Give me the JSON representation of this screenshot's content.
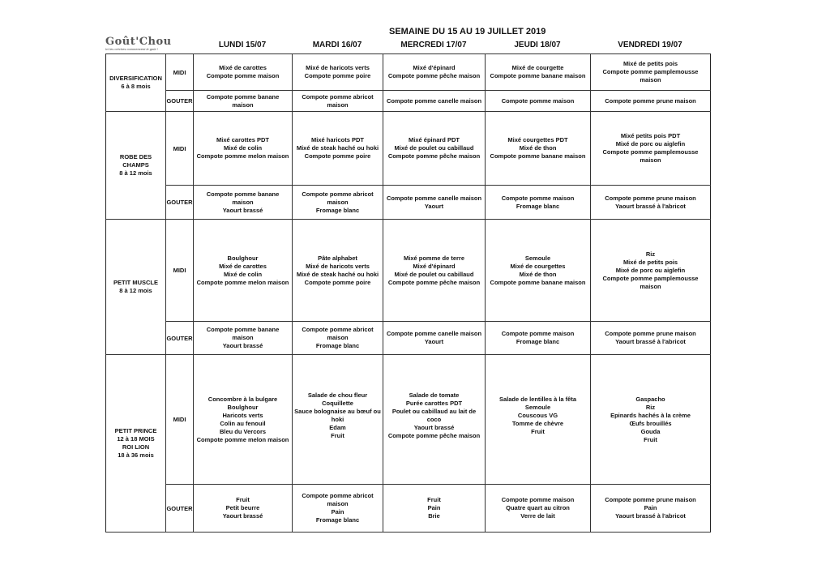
{
  "logo": {
    "name": "Goût'Chou",
    "tagline": "Ici les créches commencent le goût !"
  },
  "title": "SEMAINE DU 15 AU 19 JUILLET 2019",
  "days": [
    "LUNDI 15/07",
    "MARDI 16/07",
    "MERCREDI 17/07",
    "JEUDI 18/07",
    "VENDREDI 19/07"
  ],
  "meal_labels": {
    "midi": "MIDI",
    "gouter": "GOUTER"
  },
  "sections": [
    {
      "name_lines": [
        "DIVERSIFICATION",
        "6 à 8 mois"
      ],
      "midi": [
        [
          "Mixé de carottes",
          "Compote pomme maison"
        ],
        [
          "Mixé de haricots verts",
          "Compote pomme poire"
        ],
        [
          "Mixé d'épinard",
          "Compote pomme pêche maison"
        ],
        [
          "Mixé de courgette",
          "Compote pomme banane maison"
        ],
        [
          "Mixé de petits pois",
          "Compote pomme pamplemousse maison"
        ]
      ],
      "gouter": [
        [
          "Compote pomme banane maison"
        ],
        [
          "Compote pomme abricot maison"
        ],
        [
          "Compote pomme canelle maison"
        ],
        [
          "Compote pomme maison"
        ],
        [
          "Compote pomme prune maison"
        ]
      ]
    },
    {
      "name_lines": [
        "ROBE DES CHAMPS",
        "8 à 12 mois"
      ],
      "midi": [
        [
          "Mixé carottes PDT",
          "Mixé de colin",
          "Compote pomme melon maison"
        ],
        [
          "Mixé haricots PDT",
          "Mixé de steak haché ou hoki",
          "Compote pomme poire"
        ],
        [
          "Mixé épinard PDT",
          "Mixé de poulet ou cabillaud",
          "Compote pomme pêche maison"
        ],
        [
          "Mixé courgettes PDT",
          "Mixé de thon",
          "Compote pomme banane maison"
        ],
        [
          "Mixé petits pois PDT",
          "Mixé de porc ou aiglefin",
          "Compote pomme pamplemousse maison"
        ]
      ],
      "gouter": [
        [
          "Compote pomme banane maison",
          "Yaourt brassé"
        ],
        [
          "Compote pomme abricot maison",
          "Fromage blanc"
        ],
        [
          "Compote pomme canelle maison",
          "Yaourt"
        ],
        [
          "Compote pomme maison",
          "Fromage blanc"
        ],
        [
          "Compote pomme prune maison",
          "Yaourt brassé à l'abricot"
        ]
      ]
    },
    {
      "name_lines": [
        "PETIT MUSCLE",
        "8 à 12 mois"
      ],
      "midi": [
        [
          "Boulghour",
          "Mixé de carottes",
          "Mixé de colin",
          "Compote pomme melon maison"
        ],
        [
          "Pâte alphabet",
          "Mixé de haricots verts",
          "Mixé de steak haché ou hoki",
          "Compote pomme poire"
        ],
        [
          "Mixé pomme de terre",
          "Mixé d'épinard",
          "Mixé de poulet ou cabillaud",
          "Compote pomme pêche maison"
        ],
        [
          "Semoule",
          "Mixé de courgettes",
          "Mixé de thon",
          "Compote pomme banane maison"
        ],
        [
          "Riz",
          "Mixé de petits pois",
          "Mixé de porc ou aiglefin",
          "Compote pomme pamplemousse maison"
        ]
      ],
      "gouter": [
        [
          "Compote pomme banane maison",
          "Yaourt brassé"
        ],
        [
          "Compote pomme abricot maison",
          "Fromage blanc"
        ],
        [
          "Compote pomme canelle maison",
          "Yaourt"
        ],
        [
          "Compote pomme maison",
          "Fromage blanc"
        ],
        [
          "Compote pomme prune maison",
          "Yaourt brassé à l'abricot"
        ]
      ]
    },
    {
      "name_lines": [
        "PETIT PRINCE",
        "12 à 18 MOIS",
        "ROI LION",
        "18 à 36 mois"
      ],
      "midi": [
        [
          "Concombre à la bulgare",
          "Boulghour",
          "Haricots verts",
          "Colin au fenouil",
          "Bleu du Vercors",
          "Compote pomme melon maison"
        ],
        [
          "Salade de chou fleur",
          "Coquillette",
          "Sauce bolognaise au bœuf ou hoki",
          "Edam",
          "Fruit"
        ],
        [
          "Salade de tomate",
          "Purée carottes PDT",
          "Poulet ou cabillaud au lait de coco",
          "Yaourt brassé",
          "Compote pomme pêche maison"
        ],
        [
          "Salade de lentilles à la fêta",
          "Semoule",
          "Couscous VG",
          "Tomme de chèvre",
          "Fruit"
        ],
        [
          "Gaspacho",
          "Riz",
          "Epinards hachés à la crème",
          "Œufs brouillés",
          "Gouda",
          "Fruit"
        ]
      ],
      "gouter": [
        [
          "Fruit",
          "Petit beurre",
          "Yaourt brassé"
        ],
        [
          "Compote pomme abricot maison",
          "Pain",
          "Fromage blanc"
        ],
        [
          "Fruit",
          "Pain",
          "Brie"
        ],
        [
          "Compote pomme maison",
          "Quatre quart au citron",
          "Verre de lait"
        ],
        [
          "Compote pomme prune maison",
          "Pain",
          "Yaourt brassé à l'abricot"
        ]
      ]
    }
  ]
}
